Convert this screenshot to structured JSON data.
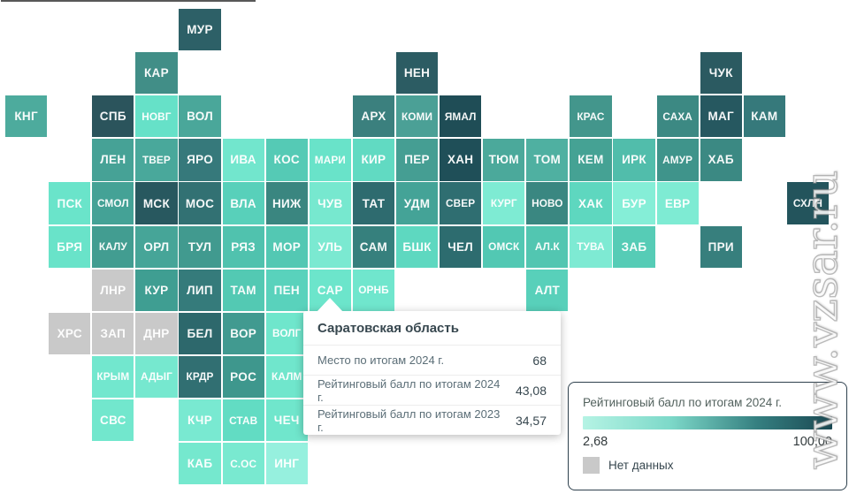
{
  "watermark": "www.vzsar.ru",
  "tooltip": {
    "title": "Саратовская область",
    "rows": [
      {
        "label": "Место по итогам 2024 г.",
        "value": "68"
      },
      {
        "label": "Рейтинговый балл по итогам 2024 г.",
        "value": "43,08"
      },
      {
        "label": "Рейтинговый балл по итогам 2023 г.",
        "value": "34,57"
      }
    ]
  },
  "chart_data": {
    "type": "heatmap",
    "subtype": "tile-grid-cartogram-of-russian-regions",
    "legend": {
      "title": "Рейтинговый балл по итогам 2024 г.",
      "min": "2,68",
      "max": "100,00",
      "no_data_label": "Нет данных",
      "no_data_color": "#c9c9c9",
      "gradient": {
        "start": "#b5f3e4",
        "mid": "#7dd9c9",
        "mid2": "#357f80",
        "end": "#1a4852"
      }
    },
    "tiles": [
      {
        "label": "МУР",
        "row": 0,
        "col": 4,
        "color": "#2d6067"
      },
      {
        "label": "КАР",
        "row": 1,
        "col": 3,
        "color": "#418e87"
      },
      {
        "label": "НЕН",
        "row": 1,
        "col": 9,
        "color": "#2c5c63"
      },
      {
        "label": "ЧУК",
        "row": 1,
        "col": 16,
        "color": "#2b5a61"
      },
      {
        "label": "КНГ",
        "row": 2,
        "col": 0,
        "color": "#4dab9d"
      },
      {
        "label": "СПБ",
        "row": 2,
        "col": 2,
        "color": "#2b545c"
      },
      {
        "label": "НОВГ",
        "row": 2,
        "col": 3,
        "color": "#66e1c8"
      },
      {
        "label": "ВОЛ",
        "row": 2,
        "col": 4,
        "color": "#4aa79a"
      },
      {
        "label": "АРХ",
        "row": 2,
        "col": 8,
        "color": "#3b807e"
      },
      {
        "label": "КОМИ",
        "row": 2,
        "col": 9,
        "color": "#4ba096"
      },
      {
        "label": "ЯМАЛ",
        "row": 2,
        "col": 10,
        "color": "#1f4d56"
      },
      {
        "label": "КРАС",
        "row": 2,
        "col": 13,
        "color": "#43968c"
      },
      {
        "label": "САХА",
        "row": 2,
        "col": 15,
        "color": "#3c8983"
      },
      {
        "label": "МАГ",
        "row": 2,
        "col": 16,
        "color": "#265860"
      },
      {
        "label": "КАМ",
        "row": 2,
        "col": 17,
        "color": "#36797b"
      },
      {
        "label": "ЛЕН",
        "row": 3,
        "col": 2,
        "color": "#46a296"
      },
      {
        "label": "ТВЕР",
        "row": 3,
        "col": 3,
        "color": "#49a89b"
      },
      {
        "label": "ЯРО",
        "row": 3,
        "col": 4,
        "color": "#36797b"
      },
      {
        "label": "ИВА",
        "row": 3,
        "col": 5,
        "color": "#72e6cd"
      },
      {
        "label": "КОС",
        "row": 3,
        "col": 6,
        "color": "#55cab5"
      },
      {
        "label": "МАРИ",
        "row": 3,
        "col": 7,
        "color": "#69e3c9"
      },
      {
        "label": "КИР",
        "row": 3,
        "col": 8,
        "color": "#61dac2"
      },
      {
        "label": "ПЕР",
        "row": 3,
        "col": 9,
        "color": "#459e93"
      },
      {
        "label": "ХАН",
        "row": 3,
        "col": 10,
        "color": "#1f4f58"
      },
      {
        "label": "ТЮМ",
        "row": 3,
        "col": 11,
        "color": "#4ba99b"
      },
      {
        "label": "ТОМ",
        "row": 3,
        "col": 12,
        "color": "#4fb0a1"
      },
      {
        "label": "КЕМ",
        "row": 3,
        "col": 13,
        "color": "#45a294"
      },
      {
        "label": "ИРК",
        "row": 3,
        "col": 14,
        "color": "#51bdab"
      },
      {
        "label": "АМУР",
        "row": 3,
        "col": 15,
        "color": "#3f948b"
      },
      {
        "label": "ХАБ",
        "row": 3,
        "col": 16,
        "color": "#3b8983"
      },
      {
        "label": "ПСК",
        "row": 4,
        "col": 1,
        "color": "#6ae4ca"
      },
      {
        "label": "СМОЛ",
        "row": 4,
        "col": 2,
        "color": "#44a296"
      },
      {
        "label": "МСК",
        "row": 4,
        "col": 3,
        "color": "#28585f"
      },
      {
        "label": "МОС",
        "row": 4,
        "col": 4,
        "color": "#327173"
      },
      {
        "label": "ВЛА",
        "row": 4,
        "col": 5,
        "color": "#58d0ba"
      },
      {
        "label": "НИЖ",
        "row": 4,
        "col": 6,
        "color": "#3a8680"
      },
      {
        "label": "ЧУВ",
        "row": 4,
        "col": 7,
        "color": "#77e8cf"
      },
      {
        "label": "ТАТ",
        "row": 4,
        "col": 8,
        "color": "#2e6b6f"
      },
      {
        "label": "УДМ",
        "row": 4,
        "col": 9,
        "color": "#44a397"
      },
      {
        "label": "СВЕР",
        "row": 4,
        "col": 10,
        "color": "#2f6e71"
      },
      {
        "label": "КУРГ",
        "row": 4,
        "col": 11,
        "color": "#7eebd3"
      },
      {
        "label": "НОВО",
        "row": 4,
        "col": 12,
        "color": "#3a8781"
      },
      {
        "label": "ХАК",
        "row": 4,
        "col": 13,
        "color": "#5ed7bf"
      },
      {
        "label": "БУР",
        "row": 4,
        "col": 14,
        "color": "#85eed7"
      },
      {
        "label": "ЕВР",
        "row": 4,
        "col": 15,
        "color": "#7eebd3"
      },
      {
        "label": "СХЛН",
        "row": 4,
        "col": 18,
        "color": "#23545c"
      },
      {
        "label": "БРЯ",
        "row": 5,
        "col": 1,
        "color": "#69e3c9"
      },
      {
        "label": "КАЛУ",
        "row": 5,
        "col": 2,
        "color": "#429d91"
      },
      {
        "label": "ОРЛ",
        "row": 5,
        "col": 3,
        "color": "#46a598"
      },
      {
        "label": "ТУЛ",
        "row": 5,
        "col": 4,
        "color": "#419a8f"
      },
      {
        "label": "РЯЗ",
        "row": 5,
        "col": 5,
        "color": "#50c2ae"
      },
      {
        "label": "МОР",
        "row": 5,
        "col": 6,
        "color": "#53c8b3"
      },
      {
        "label": "УЛЬ",
        "row": 5,
        "col": 7,
        "color": "#7be9d1"
      },
      {
        "label": "САМ",
        "row": 5,
        "col": 8,
        "color": "#36807d"
      },
      {
        "label": "БШК",
        "row": 5,
        "col": 9,
        "color": "#5ed8c0"
      },
      {
        "label": "ЧЕЛ",
        "row": 5,
        "col": 10,
        "color": "#2d6c6f"
      },
      {
        "label": "ОМСК",
        "row": 5,
        "col": 11,
        "color": "#52c8b3"
      },
      {
        "label": "АЛ.К",
        "row": 5,
        "col": 12,
        "color": "#52c6b1"
      },
      {
        "label": "ТУВА",
        "row": 5,
        "col": 13,
        "color": "#7eead3"
      },
      {
        "label": "ЗАБ",
        "row": 5,
        "col": 14,
        "color": "#56ccb6"
      },
      {
        "label": "ПРИ",
        "row": 5,
        "col": 16,
        "color": "#377f7d"
      },
      {
        "label": "ЛНР",
        "row": 6,
        "col": 2,
        "color": "#c9c9c9"
      },
      {
        "label": "КУР",
        "row": 6,
        "col": 3,
        "color": "#3f9e92"
      },
      {
        "label": "ЛИП",
        "row": 6,
        "col": 4,
        "color": "#357b7b"
      },
      {
        "label": "ТАМ",
        "row": 6,
        "col": 5,
        "color": "#53c9b3"
      },
      {
        "label": "ПЕН",
        "row": 6,
        "col": 6,
        "color": "#59d2bc"
      },
      {
        "label": "САР",
        "row": 6,
        "col": 7,
        "color": "#6ce5cb"
      },
      {
        "label": "ОРНБ",
        "row": 6,
        "col": 8,
        "color": "#70e6cd"
      },
      {
        "label": "АЛТ",
        "row": 6,
        "col": 12,
        "color": "#58d0ba"
      },
      {
        "label": "ХРС",
        "row": 7,
        "col": 1,
        "color": "#c9c9c9"
      },
      {
        "label": "ЗАП",
        "row": 7,
        "col": 2,
        "color": "#c9c9c9"
      },
      {
        "label": "ДНР",
        "row": 7,
        "col": 3,
        "color": "#c9c9c9"
      },
      {
        "label": "БЕЛ",
        "row": 7,
        "col": 4,
        "color": "#2d686c"
      },
      {
        "label": "ВОР",
        "row": 7,
        "col": 5,
        "color": "#419a90"
      },
      {
        "label": "ВОЛГ",
        "row": 7,
        "col": 6,
        "color": "#6fe6cc"
      },
      {
        "label": "КРЫМ",
        "row": 8,
        "col": 2,
        "color": "#72e7ce"
      },
      {
        "label": "АДЫГ",
        "row": 8,
        "col": 3,
        "color": "#76e8cf"
      },
      {
        "label": "КРДР",
        "row": 8,
        "col": 4,
        "color": "#316f72"
      },
      {
        "label": "РОС",
        "row": 8,
        "col": 5,
        "color": "#3e978d"
      },
      {
        "label": "КАЛМ",
        "row": 8,
        "col": 6,
        "color": "#70e6cc"
      },
      {
        "label": "СВС",
        "row": 9,
        "col": 2,
        "color": "#72e7cd"
      },
      {
        "label": "КЧР",
        "row": 9,
        "col": 4,
        "color": "#79e9d1"
      },
      {
        "label": "СТАВ",
        "row": 9,
        "col": 5,
        "color": "#62dcc3"
      },
      {
        "label": "ЧЕЧ",
        "row": 9,
        "col": 6,
        "color": "#70e6cc"
      },
      {
        "label": "КАБ",
        "row": 10,
        "col": 4,
        "color": "#75e8ce"
      },
      {
        "label": "С.ОС",
        "row": 10,
        "col": 5,
        "color": "#79e9d0"
      },
      {
        "label": "ИНГ",
        "row": 10,
        "col": 6,
        "color": "#96f0de"
      }
    ]
  }
}
